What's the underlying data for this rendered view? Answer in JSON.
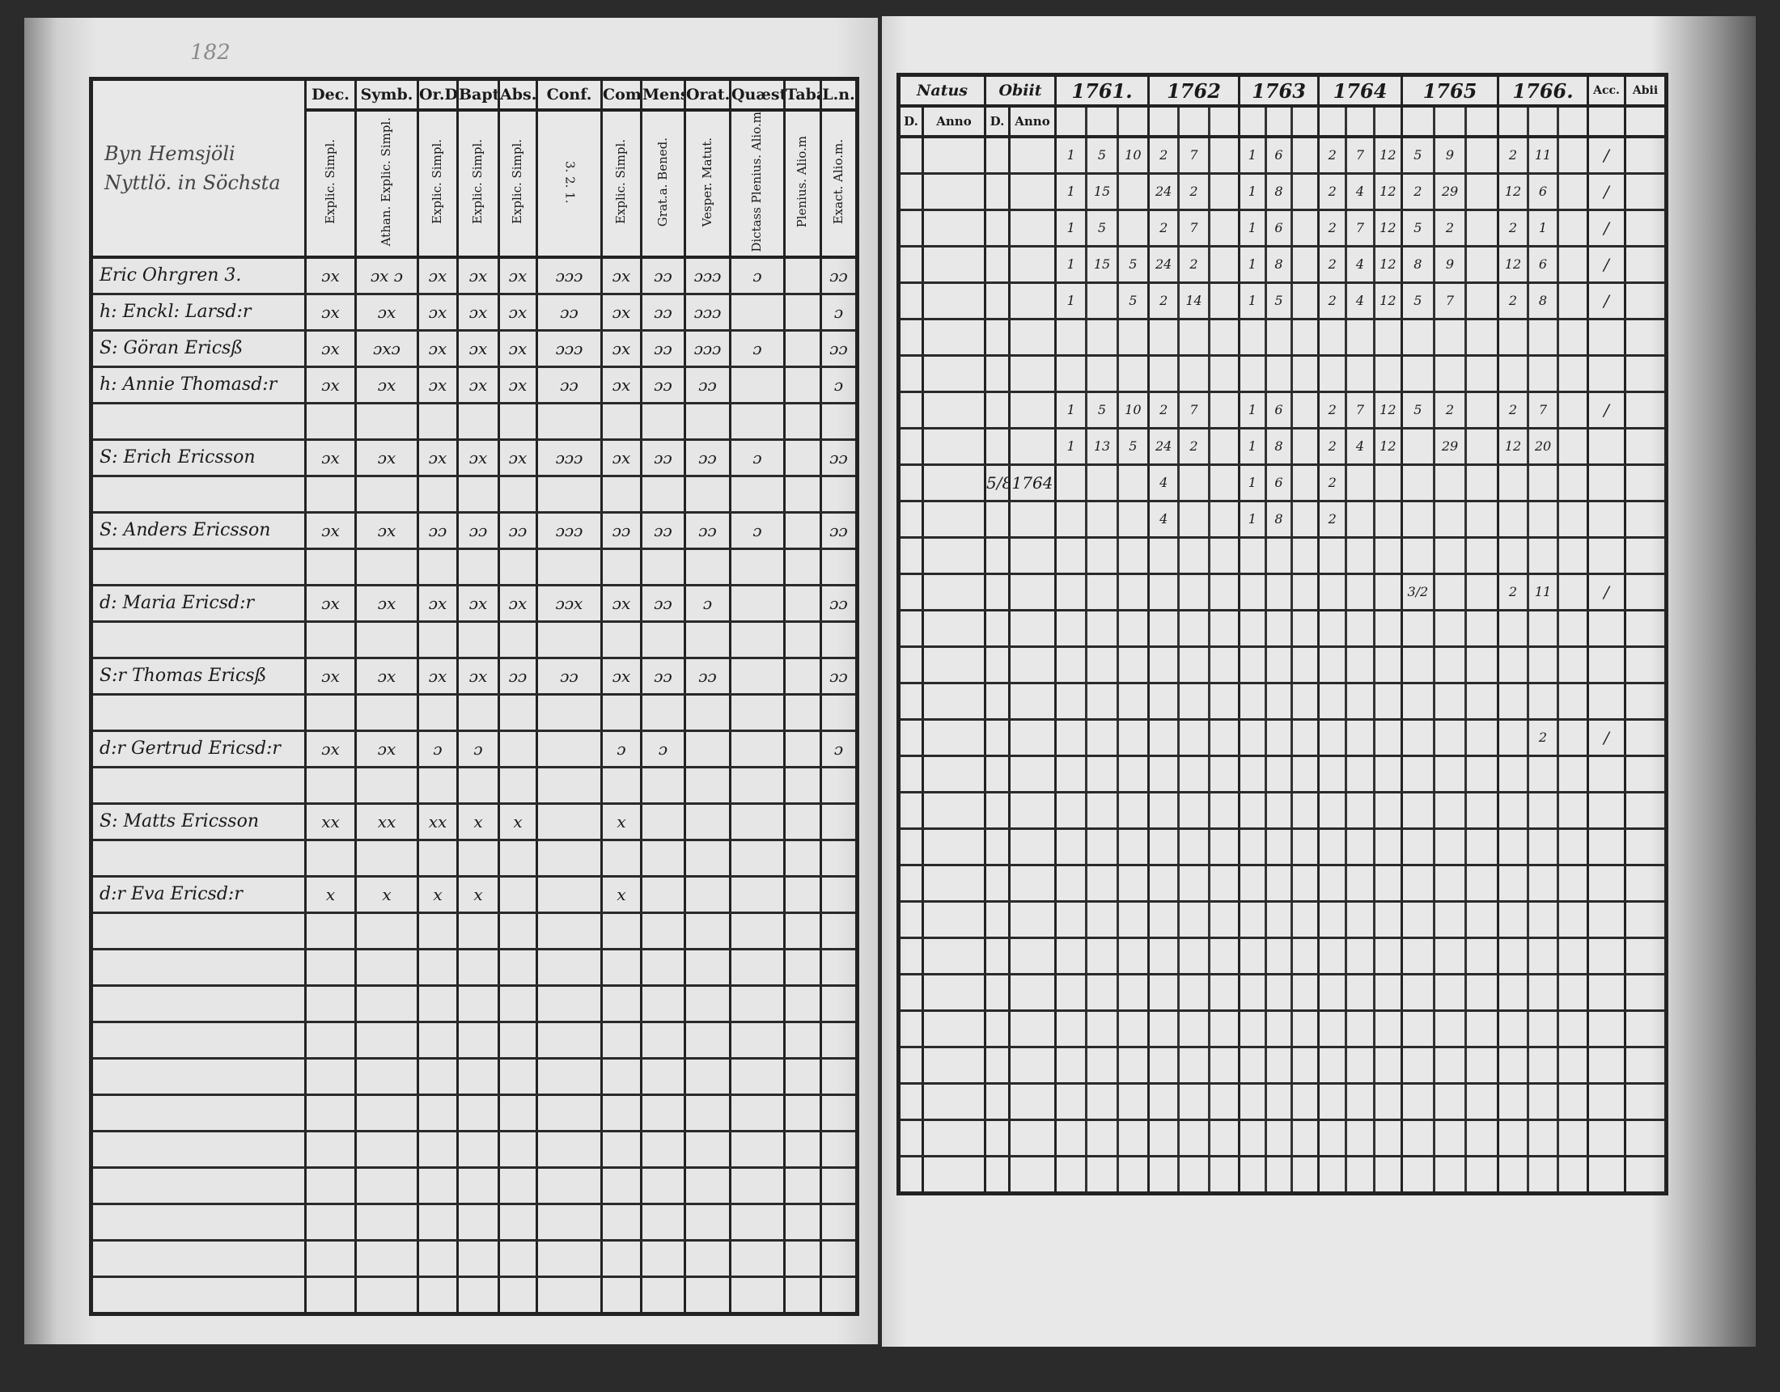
{
  "left_page": {
    "page_number": "182",
    "title": "Byn Hemsjöli Nyttlö. in Söchsta",
    "columns": [
      {
        "head": "Dec.",
        "sub": "Explic. Simpl."
      },
      {
        "head": "Symb.",
        "sub": "Athan. Explic. Simpl."
      },
      {
        "head": "Or.D",
        "sub": "Explic. Simpl."
      },
      {
        "head": "Bapt.",
        "sub": "Explic. Simpl."
      },
      {
        "head": "Abs.",
        "sub": "Explic. Simpl."
      },
      {
        "head": "Conf.",
        "sub": "3. 2. 1."
      },
      {
        "head": "Com.D",
        "sub": "Explic. Simpl."
      },
      {
        "head": "Mens.",
        "sub": "Grat.a. Bened."
      },
      {
        "head": "Orat.",
        "sub": "Vesper. Matut."
      },
      {
        "head": "Quæst.",
        "sub": "Dictass Plenius. Alio.m"
      },
      {
        "head": "Taba",
        "sub": "Plenius. Alio.m"
      },
      {
        "head": "L.n.",
        "sub": "Exact. Alio.m."
      }
    ],
    "rows": [
      {
        "row": 0,
        "name": "Eric Ohrgren 3.",
        "marks": [
          "ɔx",
          "ɔx ɔ",
          "ɔx",
          "ɔx",
          "ɔx",
          "ɔɔɔ",
          "ɔx",
          "ɔɔ",
          "ɔɔɔ",
          "ɔ",
          "",
          "ɔɔ"
        ]
      },
      {
        "row": 1,
        "name": "h: Enckl: Larsd:r",
        "marks": [
          "ɔx",
          "ɔx",
          "ɔx",
          "ɔx",
          "ɔx",
          "ɔɔ",
          "ɔx",
          "ɔɔ",
          "ɔɔɔ",
          "",
          "",
          "ɔ"
        ]
      },
      {
        "row": 2,
        "name": "S: Göran Ericsß",
        "marks": [
          "ɔx",
          "ɔxɔ",
          "ɔx",
          "ɔx",
          "ɔx",
          "ɔɔɔ",
          "ɔx",
          "ɔɔ",
          "ɔɔɔ",
          "ɔ",
          "",
          "ɔɔ"
        ]
      },
      {
        "row": 3,
        "name": "h: Annie Thomasd:r",
        "marks": [
          "ɔx",
          "ɔx",
          "ɔx",
          "ɔx",
          "ɔx",
          "ɔɔ",
          "ɔx",
          "ɔɔ",
          "ɔɔ",
          "",
          "",
          "ɔ"
        ]
      },
      {
        "row": 5,
        "name": "S: Erich Ericsson",
        "marks": [
          "ɔx",
          "ɔx",
          "ɔx",
          "ɔx",
          "ɔx",
          "ɔɔɔ",
          "ɔx",
          "ɔɔ",
          "ɔɔ",
          "ɔ",
          "",
          "ɔɔ"
        ]
      },
      {
        "row": 7,
        "name": "S: Anders Ericsson",
        "marks": [
          "ɔx",
          "ɔx",
          "ɔɔ",
          "ɔɔ",
          "ɔɔ",
          "ɔɔɔ",
          "ɔɔ",
          "ɔɔ",
          "ɔɔ",
          "ɔ",
          "",
          "ɔɔ"
        ]
      },
      {
        "row": 9,
        "name": "d: Maria Ericsd:r",
        "marks": [
          "ɔx",
          "ɔx",
          "ɔx",
          "ɔx",
          "ɔx",
          "ɔɔx",
          "ɔx",
          "ɔɔ",
          "ɔ",
          "",
          "",
          "ɔɔ"
        ]
      },
      {
        "row": 11,
        "name": "S:r Thomas Ericsß",
        "marks": [
          "ɔx",
          "ɔx",
          "ɔx",
          "ɔx",
          "ɔɔ",
          "ɔɔ",
          "ɔx",
          "ɔɔ",
          "ɔɔ",
          "",
          "",
          "ɔɔ"
        ]
      },
      {
        "row": 13,
        "name": "d:r Gertrud Ericsd:r",
        "marks": [
          "ɔx",
          "ɔx",
          "ɔ",
          "ɔ",
          "",
          "",
          "ɔ",
          "ɔ",
          "",
          "",
          "",
          "ɔ"
        ]
      },
      {
        "row": 15,
        "name": "S: Matts Ericsson",
        "marks": [
          "xx",
          "xx",
          "xx",
          "x",
          "x",
          "",
          "x",
          "",
          "",
          "",
          "",
          ""
        ]
      },
      {
        "row": 17,
        "name": "d:r Eva Ericsd:r",
        "marks": [
          "x",
          "x",
          "x",
          "x",
          "",
          "",
          "x",
          "",
          "",
          "",
          "",
          ""
        ]
      }
    ]
  },
  "right_page": {
    "columns": {
      "natus": "Natus",
      "obiit": "Obiit",
      "day": "D.",
      "anno": "Anno",
      "accessit": "Acc.",
      "abiit": "Abii",
      "years": [
        "1761.",
        "1762",
        "1763",
        "1764",
        "1765",
        "1766."
      ]
    },
    "rows": [
      {
        "row": 0,
        "obiit_day": "",
        "obiit_anno": "",
        "years": [
          [
            "1",
            "5",
            "10"
          ],
          [
            "2",
            "7",
            ""
          ],
          [
            "1",
            "6",
            ""
          ],
          [
            "2",
            "7",
            "12"
          ],
          [
            "5",
            "9",
            ""
          ],
          [
            "2",
            "11",
            ""
          ]
        ],
        "mark": "/"
      },
      {
        "row": 1,
        "obiit_day": "",
        "obiit_anno": "",
        "years": [
          [
            "1",
            "15",
            ""
          ],
          [
            "24",
            "2",
            ""
          ],
          [
            "1",
            "8",
            ""
          ],
          [
            "2",
            "4",
            "12"
          ],
          [
            "2",
            "29",
            ""
          ],
          [
            "12",
            "6",
            ""
          ]
        ],
        "mark": "/"
      },
      {
        "row": 2,
        "obiit_day": "",
        "obiit_anno": "",
        "years": [
          [
            "1",
            "5",
            ""
          ],
          [
            "2",
            "7",
            ""
          ],
          [
            "1",
            "6",
            ""
          ],
          [
            "2",
            "7",
            "12"
          ],
          [
            "5",
            "2",
            ""
          ],
          [
            "2",
            "1",
            ""
          ]
        ],
        "mark": "/"
      },
      {
        "row": 3,
        "obiit_day": "",
        "obiit_anno": "",
        "years": [
          [
            "1",
            "15",
            "5"
          ],
          [
            "24",
            "2",
            ""
          ],
          [
            "1",
            "8",
            ""
          ],
          [
            "2",
            "4",
            "12"
          ],
          [
            "8",
            "9",
            ""
          ],
          [
            "12",
            "6",
            ""
          ]
        ],
        "mark": "/"
      },
      {
        "row": 4,
        "obiit_day": "",
        "obiit_anno": "",
        "years": [
          [
            "1",
            "",
            "5"
          ],
          [
            "2",
            "14",
            ""
          ],
          [
            "1",
            "5",
            ""
          ],
          [
            "2",
            "4",
            "12"
          ],
          [
            "5",
            "7",
            ""
          ],
          [
            "2",
            "8",
            ""
          ]
        ],
        "mark": "/"
      },
      {
        "row": 7,
        "obiit_day": "",
        "obiit_anno": "",
        "years": [
          [
            "1",
            "5",
            "10"
          ],
          [
            "2",
            "7",
            ""
          ],
          [
            "1",
            "6",
            ""
          ],
          [
            "2",
            "7",
            "12"
          ],
          [
            "5",
            "2",
            ""
          ],
          [
            "2",
            "7",
            ""
          ]
        ],
        "mark": "/"
      },
      {
        "row": 8,
        "obiit_day": "",
        "obiit_anno": "",
        "years": [
          [
            "1",
            "13",
            "5"
          ],
          [
            "24",
            "2",
            ""
          ],
          [
            "1",
            "8",
            ""
          ],
          [
            "2",
            "4",
            "12"
          ],
          [
            "",
            "29",
            ""
          ],
          [
            "12",
            "20",
            ""
          ]
        ],
        "mark": ""
      },
      {
        "row": 9,
        "obiit_day": "5/8",
        "obiit_anno": "1764",
        "years": [
          [
            "",
            "",
            ""
          ],
          [
            "4",
            "",
            ""
          ],
          [
            "1",
            "6",
            ""
          ],
          [
            "2",
            "",
            ""
          ],
          [
            "",
            "",
            ""
          ],
          [
            "",
            "",
            ""
          ]
        ],
        "mark": ""
      },
      {
        "row": 10,
        "obiit_day": "",
        "obiit_anno": "",
        "years": [
          [
            "",
            "",
            ""
          ],
          [
            "4",
            "",
            ""
          ],
          [
            "1",
            "8",
            ""
          ],
          [
            "2",
            "",
            ""
          ],
          [
            "",
            "",
            ""
          ],
          [
            "",
            "",
            ""
          ]
        ],
        "mark": ""
      },
      {
        "row": 12,
        "obiit_day": "",
        "obiit_anno": "",
        "years": [
          [
            "",
            "",
            ""
          ],
          [
            "",
            "",
            ""
          ],
          [
            "",
            "",
            ""
          ],
          [
            "",
            "",
            ""
          ],
          [
            "3/2",
            "",
            ""
          ],
          [
            "2",
            "11",
            ""
          ]
        ],
        "mark": "/"
      },
      {
        "row": 16,
        "obiit_day": "",
        "obiit_anno": "",
        "years": [
          [
            "",
            "",
            ""
          ],
          [
            "",
            "",
            ""
          ],
          [
            "",
            "",
            ""
          ],
          [
            "",
            "",
            ""
          ],
          [
            "",
            "",
            ""
          ],
          [
            "",
            "2",
            ""
          ]
        ],
        "mark": "/"
      }
    ]
  },
  "colors": {
    "ink": "#1a1a1a",
    "paper": "#e4e4e4",
    "background": "#2b2b2b"
  }
}
